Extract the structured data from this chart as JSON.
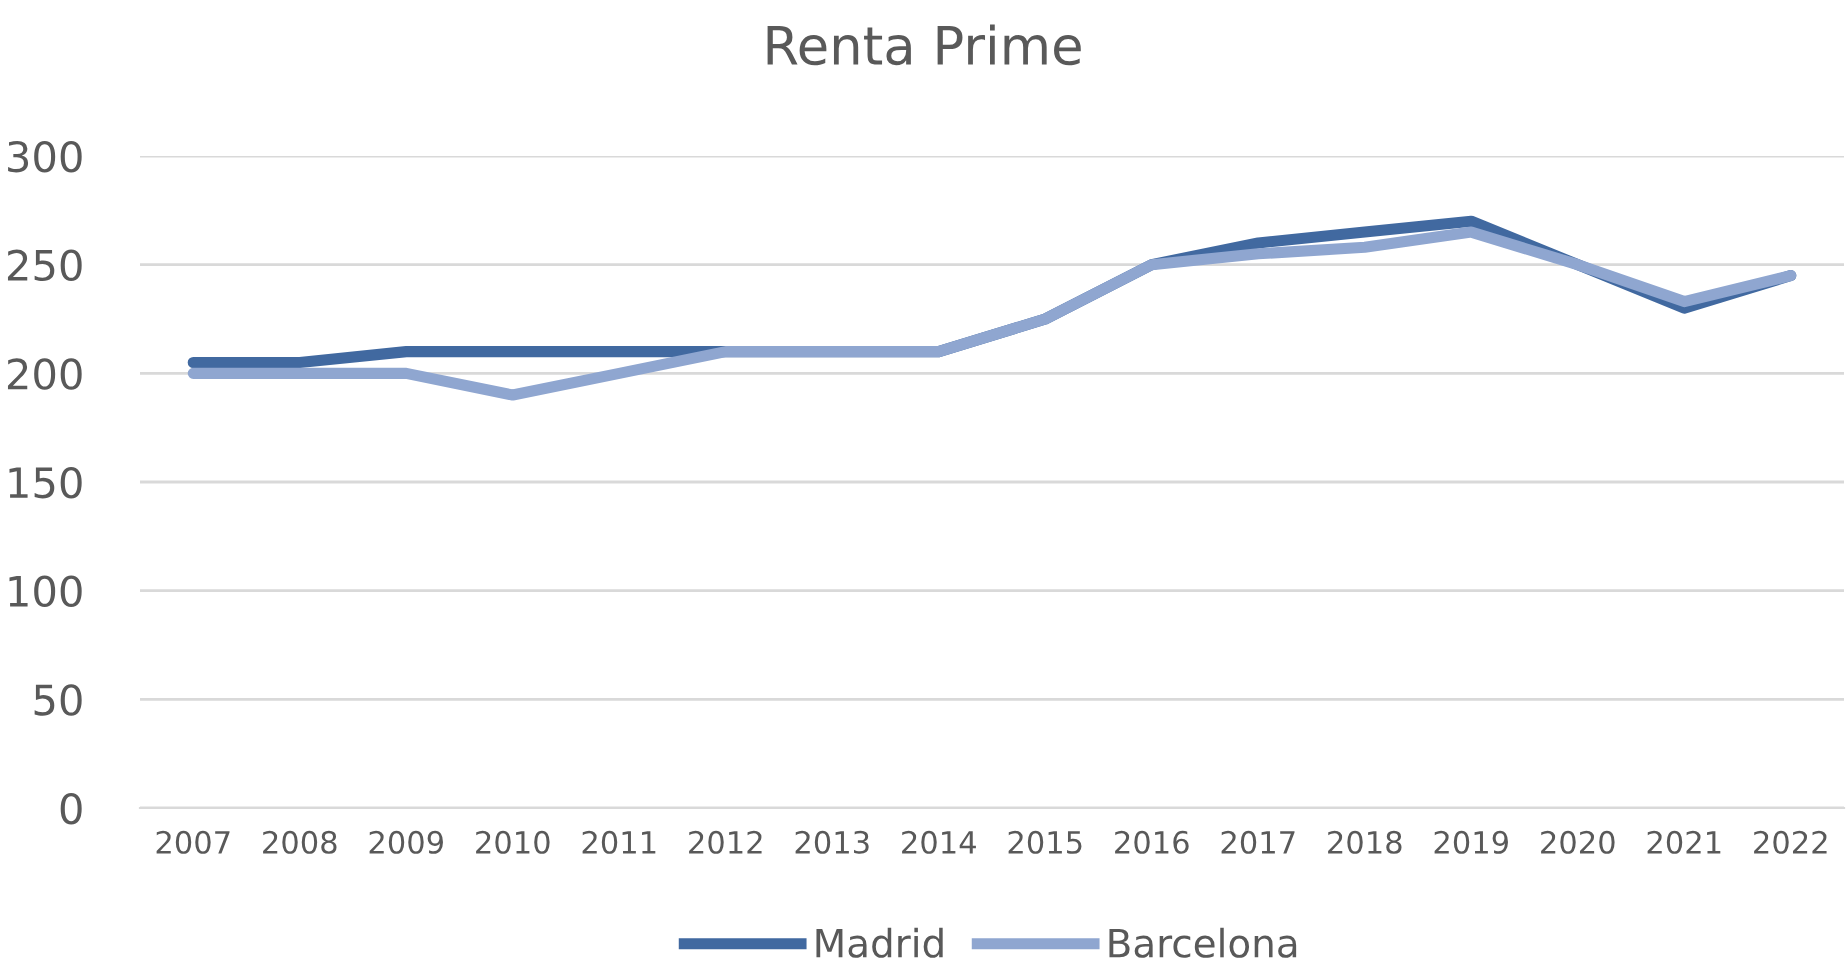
{
  "chart_data": {
    "type": "line",
    "title": "Renta Prime",
    "categories": [
      "2007",
      "2008",
      "2009",
      "2010",
      "2011",
      "2012",
      "2013",
      "2014",
      "2015",
      "2016",
      "2017",
      "2018",
      "2019",
      "2020",
      "2021",
      "2022"
    ],
    "series": [
      {
        "name": "Madrid",
        "color": "#4169a0",
        "values": [
          205,
          205,
          210,
          210,
          210,
          210,
          210,
          210,
          225,
          250,
          260,
          265,
          270,
          250,
          230,
          245
        ]
      },
      {
        "name": "Barcelona",
        "color": "#8fa6d0",
        "values": [
          200,
          200,
          200,
          190,
          200,
          210,
          210,
          210,
          225,
          250,
          255,
          258,
          265,
          250,
          233,
          245
        ]
      }
    ],
    "ylim": [
      0,
      300
    ],
    "yticks": [
      0,
      50,
      100,
      150,
      200,
      250,
      300
    ],
    "grid": "y",
    "legend": "bottom",
    "marker": "none",
    "line_style": "solid"
  }
}
